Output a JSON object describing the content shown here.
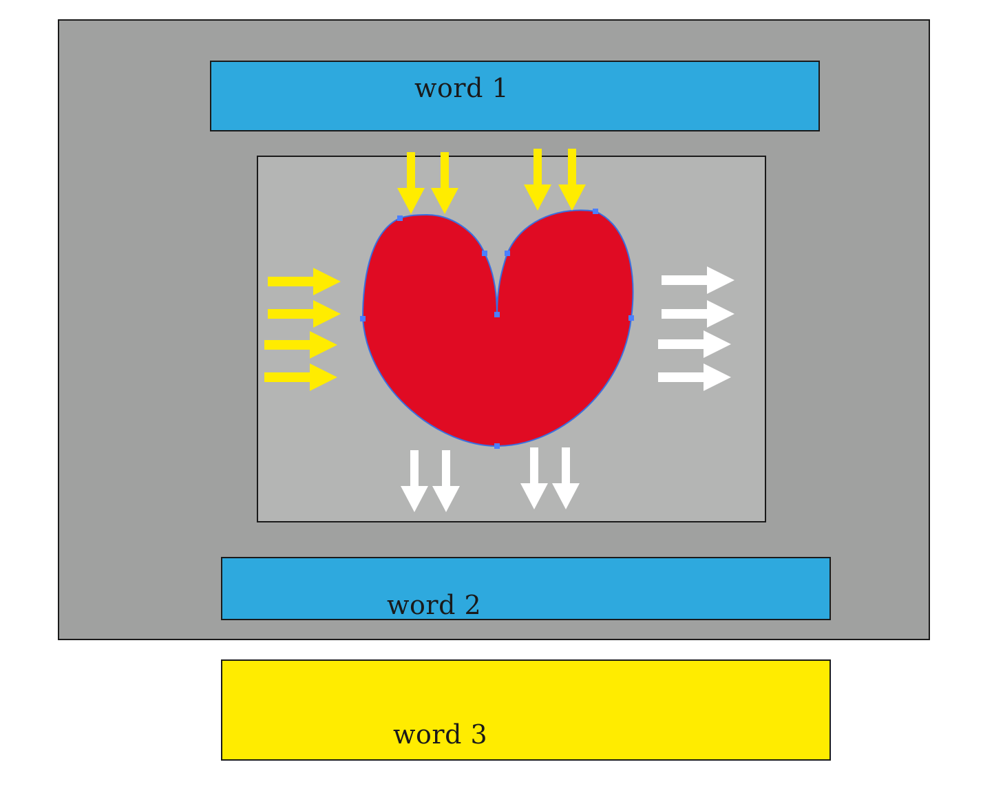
{
  "colors": {
    "outer_panel": "#a0a1a0",
    "inner_panel": "#b4b5b4",
    "banner_blue": "#2ea9de",
    "banner_yellow": "#ffec00",
    "heart_red": "#e00b23",
    "heart_outline": "#3a6fe0",
    "anchor_points": "#4a7fff",
    "arrow_in": "#ffec00",
    "arrow_out": "#ffffff"
  },
  "banners": {
    "top_label": "word 1",
    "middle_label": "word 2",
    "bottom_label": "word 3"
  },
  "shape": {
    "name": "heart",
    "icon": "heart-icon"
  },
  "arrows": {
    "incoming_icon": "arrow-in-icon",
    "outgoing_icon": "arrow-out-icon",
    "incoming_top_count": 4,
    "incoming_left_count": 4,
    "outgoing_right_count": 4,
    "outgoing_bottom_count": 4
  }
}
